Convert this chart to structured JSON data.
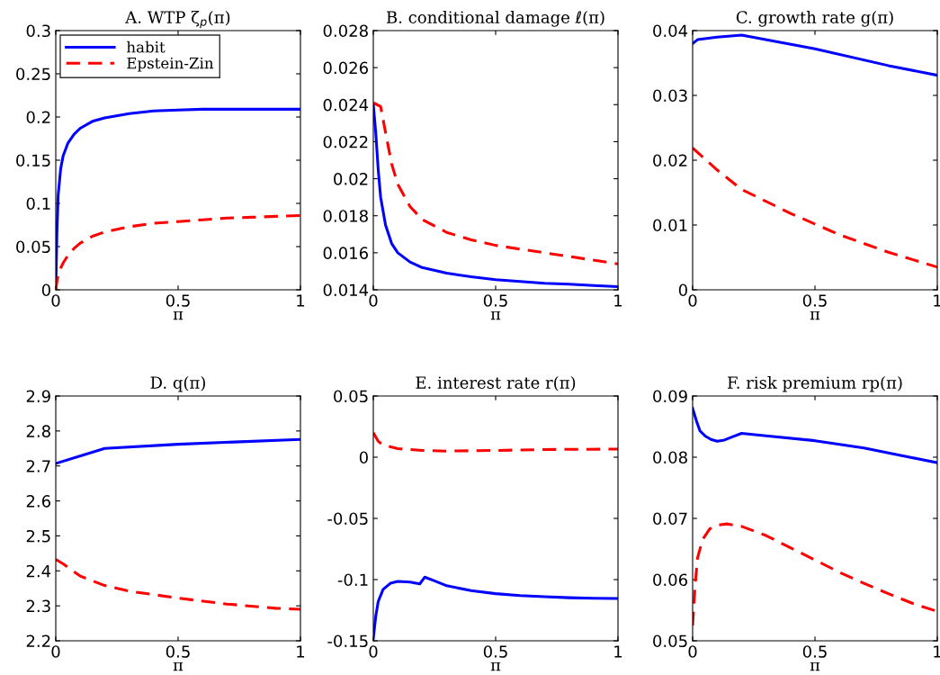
{
  "chart_data": [
    {
      "type": "line",
      "title": "A. WTP ζ$_{p}$(π)",
      "xlabel": "π",
      "xlim": [
        0,
        1
      ],
      "xticks": [
        0,
        0.5,
        1
      ],
      "ylim": [
        0,
        0.3
      ],
      "yticks": [
        0,
        0.05,
        0.1,
        0.15,
        0.2,
        0.25,
        0.3
      ],
      "legend": "top left",
      "grid": false,
      "series": [
        {
          "name": "habit",
          "color": "#0000ff",
          "line_style": "solid",
          "x": [
            0,
            0.005,
            0.01,
            0.02,
            0.03,
            0.05,
            0.075,
            0.1,
            0.15,
            0.2,
            0.3,
            0.4,
            0.5,
            0.6,
            0.7,
            0.8,
            0.9,
            1
          ],
          "values": [
            0,
            0.07,
            0.11,
            0.14,
            0.155,
            0.17,
            0.18,
            0.187,
            0.195,
            0.199,
            0.204,
            0.207,
            0.208,
            0.209,
            0.209,
            0.209,
            0.209,
            0.209
          ]
        },
        {
          "name": "Epstein-Zin",
          "color": "#ff0000",
          "line_style": "dashed",
          "x": [
            0,
            0.005,
            0.01,
            0.02,
            0.03,
            0.05,
            0.075,
            0.1,
            0.15,
            0.2,
            0.3,
            0.4,
            0.5,
            0.6,
            0.7,
            0.8,
            0.9,
            1
          ],
          "values": [
            0,
            0.01,
            0.018,
            0.025,
            0.031,
            0.04,
            0.048,
            0.054,
            0.062,
            0.067,
            0.073,
            0.077,
            0.079,
            0.081,
            0.083,
            0.084,
            0.085,
            0.086
          ]
        }
      ]
    },
    {
      "type": "line",
      "title": "B. conditional damage ℓ(π)",
      "xlabel": "π",
      "xlim": [
        0,
        1
      ],
      "xticks": [
        0,
        0.5,
        1
      ],
      "ylim": [
        0.014,
        0.028
      ],
      "yticks": [
        0.014,
        0.016,
        0.018,
        0.02,
        0.022,
        0.024,
        0.026,
        0.028
      ],
      "grid": false,
      "series": [
        {
          "color": "#0000ff",
          "line_style": "solid",
          "x": [
            0,
            0.01,
            0.02,
            0.03,
            0.05,
            0.075,
            0.1,
            0.15,
            0.2,
            0.3,
            0.4,
            0.5,
            0.6,
            0.7,
            0.8,
            0.9,
            1
          ],
          "values": [
            0.024,
            0.0225,
            0.0205,
            0.019,
            0.0175,
            0.0165,
            0.016,
            0.0155,
            0.0152,
            0.0149,
            0.0147,
            0.01455,
            0.01445,
            0.01435,
            0.0143,
            0.01423,
            0.01417
          ]
        },
        {
          "color": "#ff0000",
          "line_style": "dashed",
          "x": [
            0,
            0.03,
            0.05,
            0.075,
            0.1,
            0.15,
            0.2,
            0.3,
            0.4,
            0.5,
            0.6,
            0.7,
            0.8,
            0.9,
            1
          ],
          "values": [
            0.0241,
            0.0239,
            0.0225,
            0.0208,
            0.0197,
            0.0185,
            0.0178,
            0.0171,
            0.0167,
            0.0164,
            0.0162,
            0.016,
            0.0158,
            0.0156,
            0.0154
          ]
        }
      ]
    },
    {
      "type": "line",
      "title": "C. growth rate g(π)",
      "xlabel": "π",
      "xlim": [
        0,
        1
      ],
      "xticks": [
        0,
        0.5,
        1
      ],
      "ylim": [
        0,
        0.04
      ],
      "yticks": [
        0,
        0.01,
        0.02,
        0.03,
        0.04
      ],
      "grid": false,
      "series": [
        {
          "color": "#0000ff",
          "line_style": "solid",
          "x": [
            0,
            0.02,
            0.1,
            0.2,
            0.5,
            0.8,
            1
          ],
          "values": [
            0.038,
            0.0386,
            0.039,
            0.0393,
            0.0372,
            0.0346,
            0.0331
          ]
        },
        {
          "color": "#ff0000",
          "line_style": "dashed",
          "x": [
            0,
            0.1,
            0.2,
            0.4,
            0.6,
            0.8,
            1
          ],
          "values": [
            0.0219,
            0.0185,
            0.0155,
            0.0118,
            0.0085,
            0.0058,
            0.0035
          ]
        }
      ]
    },
    {
      "type": "line",
      "title": "D. q(π)",
      "xlabel": "π",
      "xlim": [
        0,
        1
      ],
      "xticks": [
        0,
        0.5,
        1
      ],
      "ylim": [
        2.2,
        2.9
      ],
      "yticks": [
        2.2,
        2.3,
        2.4,
        2.5,
        2.6,
        2.7,
        2.8,
        2.9
      ],
      "grid": false,
      "series": [
        {
          "color": "#0000ff",
          "line_style": "solid",
          "x": [
            0,
            0.2,
            0.5,
            1
          ],
          "values": [
            2.707,
            2.75,
            2.762,
            2.776
          ]
        },
        {
          "color": "#ff0000",
          "line_style": "dashed",
          "x": [
            0,
            0.03,
            0.1,
            0.2,
            0.3,
            0.5,
            0.7,
            0.9,
            1
          ],
          "values": [
            2.433,
            2.42,
            2.385,
            2.358,
            2.342,
            2.322,
            2.305,
            2.293,
            2.29
          ]
        }
      ]
    },
    {
      "type": "line",
      "title": "E. interest rate r(π)",
      "xlabel": "π",
      "xlim": [
        0,
        1
      ],
      "xticks": [
        0,
        0.5,
        1
      ],
      "ylim": [
        -0.15,
        0.05
      ],
      "yticks": [
        -0.15,
        -0.1,
        -0.05,
        0,
        0.05
      ],
      "grid": false,
      "series": [
        {
          "color": "#0000ff",
          "line_style": "solid",
          "x": [
            0,
            0.01,
            0.02,
            0.04,
            0.07,
            0.1,
            0.15,
            0.19,
            0.21,
            0.25,
            0.3,
            0.4,
            0.5,
            0.6,
            0.7,
            0.8,
            0.9,
            1
          ],
          "values": [
            -0.148,
            -0.13,
            -0.118,
            -0.108,
            -0.103,
            -0.1015,
            -0.102,
            -0.1035,
            -0.098,
            -0.101,
            -0.105,
            -0.109,
            -0.1115,
            -0.113,
            -0.114,
            -0.1148,
            -0.1152,
            -0.1155
          ]
        },
        {
          "color": "#ff0000",
          "line_style": "dashed",
          "x": [
            0,
            0.02,
            0.04,
            0.1,
            0.2,
            0.3,
            0.5,
            0.7,
            1
          ],
          "values": [
            0.02,
            0.013,
            0.01,
            0.007,
            0.0055,
            0.005,
            0.0055,
            0.0063,
            0.0066
          ]
        }
      ]
    },
    {
      "type": "line",
      "title": "F. risk premium rp(π)",
      "xlabel": "π",
      "xlim": [
        0,
        1
      ],
      "xticks": [
        0,
        0.5,
        1
      ],
      "ylim": [
        0.05,
        0.09
      ],
      "yticks": [
        0.05,
        0.06,
        0.07,
        0.08,
        0.09
      ],
      "grid": false,
      "series": [
        {
          "color": "#0000ff",
          "line_style": "solid",
          "x": [
            0,
            0.015,
            0.03,
            0.05,
            0.075,
            0.1,
            0.13,
            0.16,
            0.2,
            0.3,
            0.5,
            0.7,
            0.85,
            1
          ],
          "values": [
            0.088,
            0.086,
            0.0843,
            0.0835,
            0.0829,
            0.0826,
            0.0828,
            0.0833,
            0.0839,
            0.0835,
            0.0827,
            0.0815,
            0.0803,
            0.0791
          ]
        },
        {
          "color": "#ff0000",
          "line_style": "dashed",
          "x": [
            0,
            0.01,
            0.02,
            0.04,
            0.07,
            0.1,
            0.14,
            0.2,
            0.3,
            0.4,
            0.5,
            0.6,
            0.7,
            0.8,
            0.9,
            1
          ],
          "values": [
            0.0525,
            0.059,
            0.0635,
            0.0665,
            0.0683,
            0.0689,
            0.0691,
            0.0687,
            0.0672,
            0.0652,
            0.0632,
            0.0612,
            0.0594,
            0.0577,
            0.0561,
            0.0548
          ]
        }
      ]
    }
  ]
}
